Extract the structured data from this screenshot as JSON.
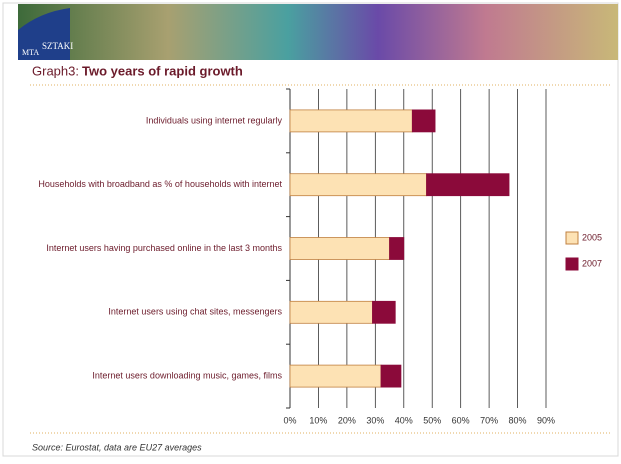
{
  "logo": [
    "MTA",
    "SZTAKI"
  ],
  "graph_label": "Graph3:",
  "source": "Source: Eurostat, data are EU27 averages",
  "chart_data": {
    "type": "stacked-bar-horizontal",
    "title": "Two years of rapid growth",
    "categories": [
      "Individuals using internet regularly",
      "Households with broadband as % of households with internet",
      "Internet users having purchased online in the last 3 months",
      "Internet users using chat sites, messengers",
      "Internet users downloading music, games, films"
    ],
    "series": [
      {
        "name": "2005",
        "color": "#fde2b4",
        "values": [
          43,
          48,
          35,
          29,
          32
        ]
      },
      {
        "name": "2007",
        "color": "#8b0a3a",
        "values": [
          8,
          29,
          5,
          8,
          7
        ]
      }
    ],
    "xlim": [
      0,
      90
    ],
    "xticks": [
      {
        "value": 0,
        "label": "0%"
      },
      {
        "value": 10,
        "label": "10%"
      },
      {
        "value": 20,
        "label": "20%"
      },
      {
        "value": 30,
        "label": "30%"
      },
      {
        "value": 40,
        "label": "40%"
      },
      {
        "value": 50,
        "label": "50%"
      },
      {
        "value": 60,
        "label": "60%"
      },
      {
        "value": 70,
        "label": "70%"
      },
      {
        "value": 80,
        "label": "80%"
      },
      {
        "value": 90,
        "label": "90%"
      }
    ],
    "grid": true,
    "legend": "right"
  }
}
